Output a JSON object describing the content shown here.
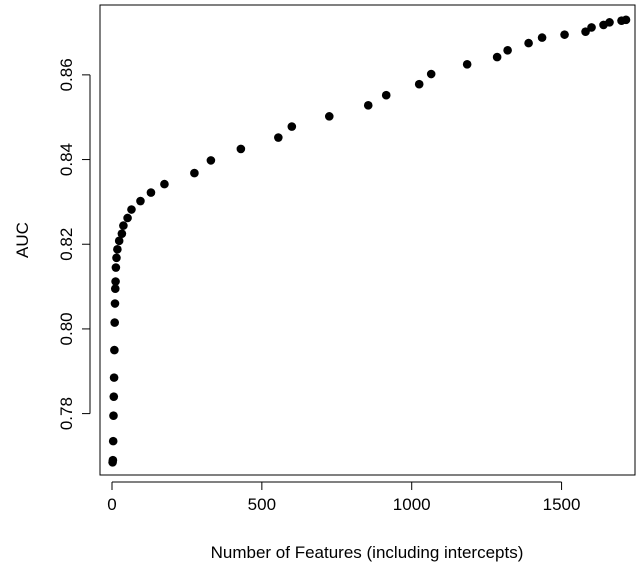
{
  "chart_data": {
    "type": "scatter",
    "title": "",
    "xlabel": "Number of Features (including intercepts)",
    "ylabel": "AUC",
    "xlim": [
      -40,
      1745
    ],
    "ylim": [
      0.7655,
      0.8765
    ],
    "x_ticks": [
      0,
      500,
      1000,
      1500
    ],
    "x_tick_labels": [
      "0",
      "500",
      "1000",
      "1500"
    ],
    "y_ticks": [
      0.78,
      0.8,
      0.82,
      0.84,
      0.86
    ],
    "y_tick_labels": [
      "0.78",
      "0.80",
      "0.82",
      "0.84",
      "0.86"
    ],
    "grid": false,
    "marker_color": "#000000",
    "series": [
      {
        "x": [
          2,
          3,
          4,
          5,
          6,
          7,
          8,
          9,
          10,
          11,
          12,
          13,
          15,
          18,
          24,
          33,
          38,
          52,
          65,
          95,
          130,
          175,
          275,
          330,
          430,
          555,
          600,
          725,
          855,
          915,
          1025,
          1065,
          1185,
          1285,
          1320,
          1390,
          1435,
          1510,
          1580,
          1600,
          1640,
          1660,
          1700,
          1715
        ],
        "y": [
          0.7685,
          0.769,
          0.7735,
          0.7795,
          0.784,
          0.7885,
          0.795,
          0.8015,
          0.806,
          0.8095,
          0.8112,
          0.8145,
          0.8168,
          0.8188,
          0.8208,
          0.8225,
          0.8244,
          0.8262,
          0.8282,
          0.8302,
          0.8322,
          0.8342,
          0.8368,
          0.8398,
          0.8425,
          0.8452,
          0.8478,
          0.8502,
          0.8528,
          0.8552,
          0.8578,
          0.8602,
          0.8625,
          0.8642,
          0.8658,
          0.8675,
          0.8688,
          0.8695,
          0.8702,
          0.8712,
          0.8718,
          0.8724,
          0.8728,
          0.873
        ]
      }
    ]
  }
}
